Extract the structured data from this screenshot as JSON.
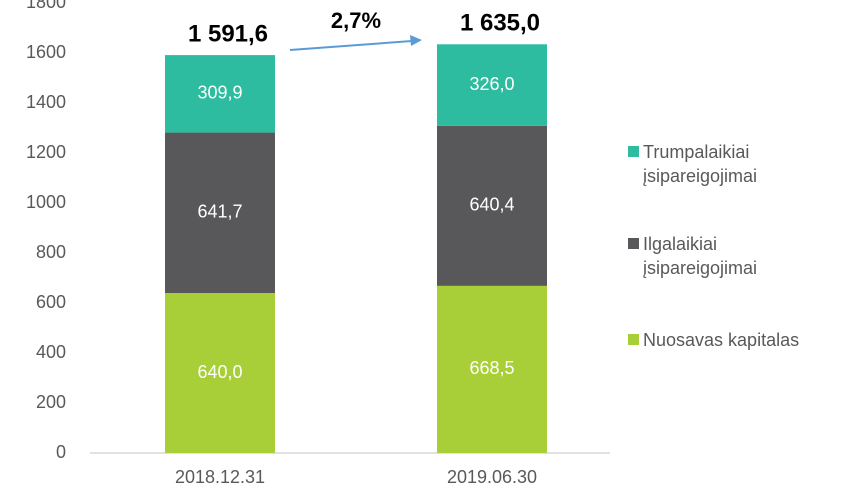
{
  "chart_data": {
    "type": "stacked_bar",
    "categories": [
      "2018.12.31",
      "2019.06.30"
    ],
    "series": [
      {
        "name": "Nuosavas kapitalas",
        "color": "#a8cf38",
        "values": [
          640.0,
          668.5
        ],
        "value_labels": [
          "640,0",
          "668,5"
        ]
      },
      {
        "name": "Ilgalaikiai įsipareigojimai",
        "color": "#58585a",
        "values": [
          641.7,
          640.4
        ],
        "value_labels": [
          "641,7",
          "640,4"
        ]
      },
      {
        "name": "Trumpalaikiai įsipareigojimai",
        "color": "#2dbc9f",
        "values": [
          309.9,
          326.0
        ],
        "value_labels": [
          "309,9",
          "326,0"
        ]
      }
    ],
    "totals": {
      "values": [
        1591.6,
        1635.0
      ],
      "value_labels": [
        "1 591,6",
        "1 635,0"
      ]
    },
    "annotation": "2,7%",
    "ylim": [
      0,
      1800
    ],
    "yticks": [
      0,
      200,
      400,
      600,
      800,
      1000,
      1200,
      1400,
      1600,
      1800
    ],
    "legend": "right"
  }
}
